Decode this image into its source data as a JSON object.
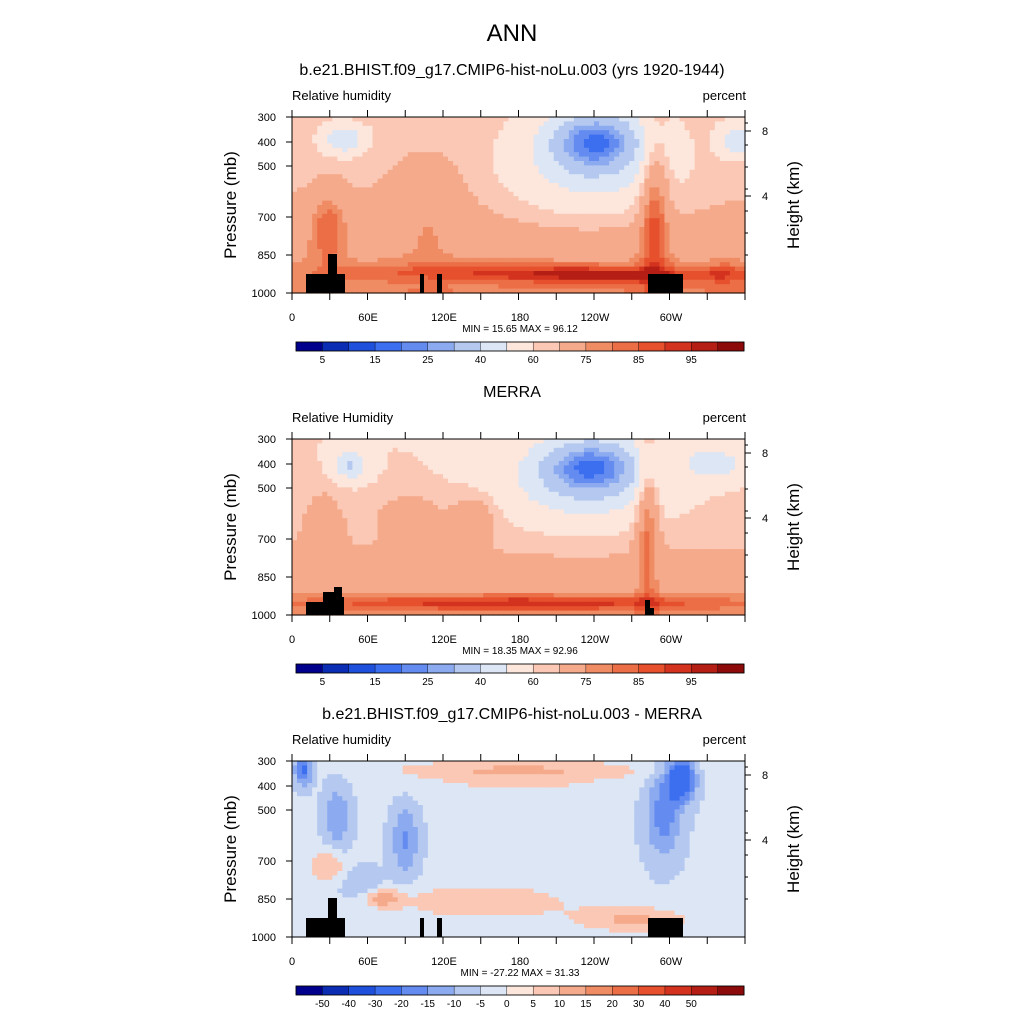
{
  "title": "ANN",
  "colorbar_colors_abs": [
    "#00008c",
    "#0a2db4",
    "#1e50dc",
    "#3c6ef0",
    "#648cf0",
    "#8caaf0",
    "#b4c8f0",
    "#dce6f5",
    "#fde6dc",
    "#fac8b4",
    "#f5aa8c",
    "#f08c64",
    "#eb6e46",
    "#e6502d",
    "#d2321e",
    "#b41e14",
    "#8c0a0a"
  ],
  "colorbar_colors_diff": [
    "#00008c",
    "#0a2db4",
    "#1e50dc",
    "#3c6ef0",
    "#648cf0",
    "#8caaf0",
    "#b4c8f0",
    "#dce6f5",
    "#fde6dc",
    "#fac8b4",
    "#f5aa8c",
    "#f08c64",
    "#eb6e46",
    "#e6502d",
    "#d2321e",
    "#b41e14",
    "#8c0a0a"
  ],
  "chart_data": [
    {
      "type": "heatmap",
      "title": "b.e21.BHIST.f09_g17.CMIP6-hist-noLu.003 (yrs 1920-1944)",
      "left_label": "Relative humidity",
      "right_label": "percent",
      "ylabel": "Pressure (mb)",
      "ylabel_right": "Height (km)",
      "x_ticks": [
        "0",
        "60E",
        "120E",
        "180",
        "120W",
        "60W"
      ],
      "y_ticks": [
        "300",
        "400",
        "500",
        "700",
        "850",
        "1000"
      ],
      "y_right_ticks": [
        "8",
        "4"
      ],
      "min_max": "MIN = 15.65  MAX = 96.12",
      "colorbar_labels": [
        "5",
        "15",
        "25",
        "40",
        "60",
        "75",
        "85",
        "95"
      ],
      "min": 15.65,
      "max": 96.12
    },
    {
      "type": "heatmap",
      "title": "MERRA",
      "left_label": "Relative Humidity",
      "right_label": "percent",
      "ylabel": "Pressure (mb)",
      "ylabel_right": "Height (km)",
      "x_ticks": [
        "0",
        "60E",
        "120E",
        "180",
        "120W",
        "60W"
      ],
      "y_ticks": [
        "300",
        "400",
        "500",
        "700",
        "850",
        "1000"
      ],
      "y_right_ticks": [
        "8",
        "4"
      ],
      "min_max": "MIN = 18.35  MAX = 92.96",
      "colorbar_labels": [
        "5",
        "15",
        "25",
        "40",
        "60",
        "75",
        "85",
        "95"
      ],
      "min": 18.35,
      "max": 92.96
    },
    {
      "type": "heatmap",
      "title": "b.e21.BHIST.f09_g17.CMIP6-hist-noLu.003 - MERRA",
      "left_label": "Relative humidity",
      "right_label": "percent",
      "ylabel": "Pressure (mb)",
      "ylabel_right": "Height (km)",
      "x_ticks": [
        "0",
        "60E",
        "120E",
        "180",
        "120W",
        "60W"
      ],
      "y_ticks": [
        "300",
        "400",
        "500",
        "700",
        "850",
        "1000"
      ],
      "y_right_ticks": [
        "8",
        "4"
      ],
      "min_max": "MIN = -27.22  MAX = 31.33",
      "colorbar_labels": [
        "-50",
        "-40",
        "-30",
        "-20",
        "-15",
        "-10",
        "-5",
        "0",
        "5",
        "10",
        "15",
        "20",
        "30",
        "40",
        "50"
      ],
      "min": -27.22,
      "max": 31.33
    }
  ]
}
